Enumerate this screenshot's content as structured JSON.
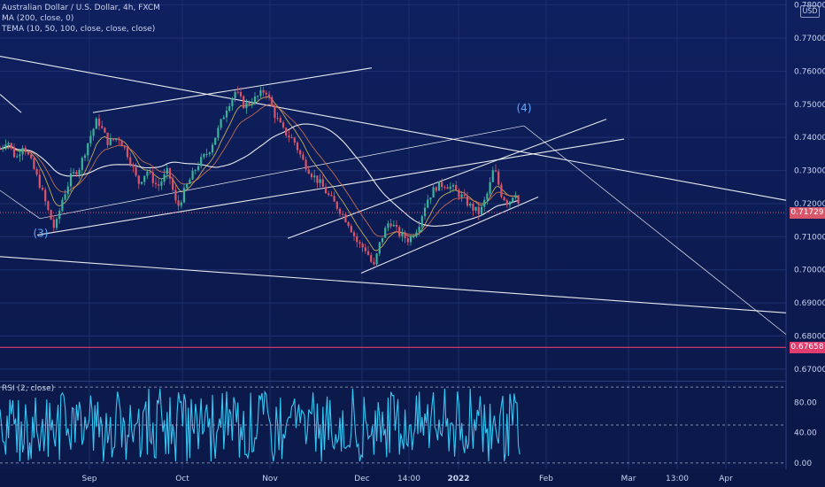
{
  "legend": {
    "symbol": "Australian Dollar / U.S. Dollar, 4h, FXCM",
    "ma": "MA (200, close, 0)",
    "tema": "TEMA (10, 50, 100, close, close, close)"
  },
  "currency": "USD",
  "rsi_label": "RSI (2, close)",
  "colors": {
    "background": "#0f2060",
    "candle_up": "#3bb39b",
    "candle_down": "#d9556a",
    "ma_line": "#ffffff",
    "tema_fast": "#e5c55a",
    "tema_slow": "#e07a4f",
    "trendline": "#ffffff",
    "last_price": "#d9556a",
    "support_line": "#e23b6e",
    "rsi_line": "#35c8f5",
    "annotation": "#5fa8ff"
  },
  "chart_data": {
    "type": "candlestick",
    "x_ticks": [
      "Sep",
      "Oct",
      "Nov",
      "Dec",
      "14:00",
      "2022",
      "Feb",
      "Mar",
      "13:00",
      "Apr"
    ],
    "y_ticks": [
      "0.78000",
      "0.77000",
      "0.76000",
      "0.75000",
      "0.74000",
      "0.73000",
      "0.72000",
      "0.71000",
      "0.70000",
      "0.69000",
      "0.68000",
      "0.67000"
    ],
    "ylim": [
      0.6665,
      0.7815
    ],
    "price_path": [
      [
        0,
        0.7365
      ],
      [
        8,
        0.7395
      ],
      [
        18,
        0.7335
      ],
      [
        26,
        0.738
      ],
      [
        36,
        0.732
      ],
      [
        46,
        0.725
      ],
      [
        54,
        0.718
      ],
      [
        62,
        0.712
      ],
      [
        70,
        0.721
      ],
      [
        80,
        0.728
      ],
      [
        90,
        0.731
      ],
      [
        100,
        0.739
      ],
      [
        110,
        0.7455
      ],
      [
        122,
        0.7385
      ],
      [
        134,
        0.74
      ],
      [
        146,
        0.734
      ],
      [
        156,
        0.726
      ],
      [
        166,
        0.73
      ],
      [
        178,
        0.725
      ],
      [
        190,
        0.73
      ],
      [
        200,
        0.7185
      ],
      [
        212,
        0.726
      ],
      [
        224,
        0.732
      ],
      [
        236,
        0.736
      ],
      [
        246,
        0.742
      ],
      [
        256,
        0.749
      ],
      [
        266,
        0.754
      ],
      [
        276,
        0.7495
      ],
      [
        290,
        0.752
      ],
      [
        300,
        0.7545
      ],
      [
        310,
        0.747
      ],
      [
        320,
        0.742
      ],
      [
        332,
        0.739
      ],
      [
        342,
        0.733
      ],
      [
        352,
        0.729
      ],
      [
        362,
        0.726
      ],
      [
        372,
        0.722
      ],
      [
        384,
        0.718
      ],
      [
        394,
        0.714
      ],
      [
        404,
        0.708
      ],
      [
        414,
        0.706
      ],
      [
        422,
        0.7005
      ],
      [
        430,
        0.709
      ],
      [
        440,
        0.715
      ],
      [
        450,
        0.711
      ],
      [
        462,
        0.709
      ],
      [
        472,
        0.713
      ],
      [
        482,
        0.721
      ],
      [
        492,
        0.725
      ],
      [
        502,
        0.726
      ],
      [
        512,
        0.7245
      ],
      [
        522,
        0.722
      ],
      [
        532,
        0.719
      ],
      [
        542,
        0.717
      ],
      [
        552,
        0.724
      ],
      [
        558,
        0.731
      ],
      [
        566,
        0.723
      ],
      [
        574,
        0.72
      ],
      [
        582,
        0.724
      ],
      [
        588,
        0.7173
      ]
    ],
    "last_price": 0.71729,
    "last_price_label": "0.71729",
    "support_price": 0.67658,
    "support_label": "0.67658",
    "wave_labels": [
      {
        "text": "(3)",
        "x": 46,
        "price": 0.71
      },
      {
        "text": "(4)",
        "x": 592,
        "price": 0.7478
      }
    ],
    "rsi": {
      "ticks": [
        "80.00",
        "40.00",
        "0.00"
      ],
      "ylim": [
        -6,
        106
      ],
      "levels": [
        100,
        50,
        0
      ]
    }
  }
}
